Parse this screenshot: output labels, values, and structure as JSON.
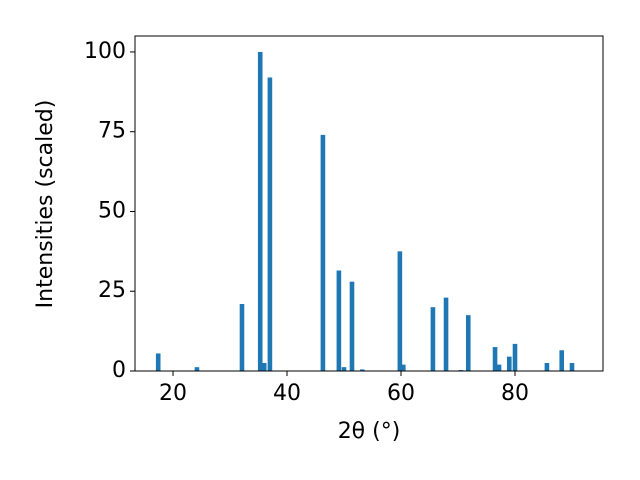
{
  "chart_data": {
    "type": "bar",
    "xlabel": "2θ (°)",
    "ylabel": "Intensities (scaled)",
    "x": [
      17.4,
      24.2,
      32.1,
      35.3,
      36.0,
      37.0,
      46.3,
      49.1,
      50.0,
      51.4,
      53.2,
      59.8,
      60.4,
      65.6,
      67.9,
      70.5,
      71.8,
      76.5,
      77.2,
      79.0,
      80.0,
      85.6,
      88.2,
      90.0
    ],
    "values": [
      5.5,
      1.2,
      21,
      100,
      2.5,
      92,
      74,
      31.5,
      1.2,
      28,
      0.5,
      37.5,
      2,
      20,
      23,
      0.3,
      17.5,
      7.5,
      2,
      4.5,
      8.5,
      2.5,
      6.5,
      2.5
    ],
    "color": "#1f77b4",
    "xlim": [
      13.33,
      95.44
    ],
    "xticks": [
      20,
      40,
      60,
      80
    ],
    "ylim": [
      0,
      105
    ],
    "yticks": [
      0,
      25,
      50,
      75,
      100
    ]
  }
}
